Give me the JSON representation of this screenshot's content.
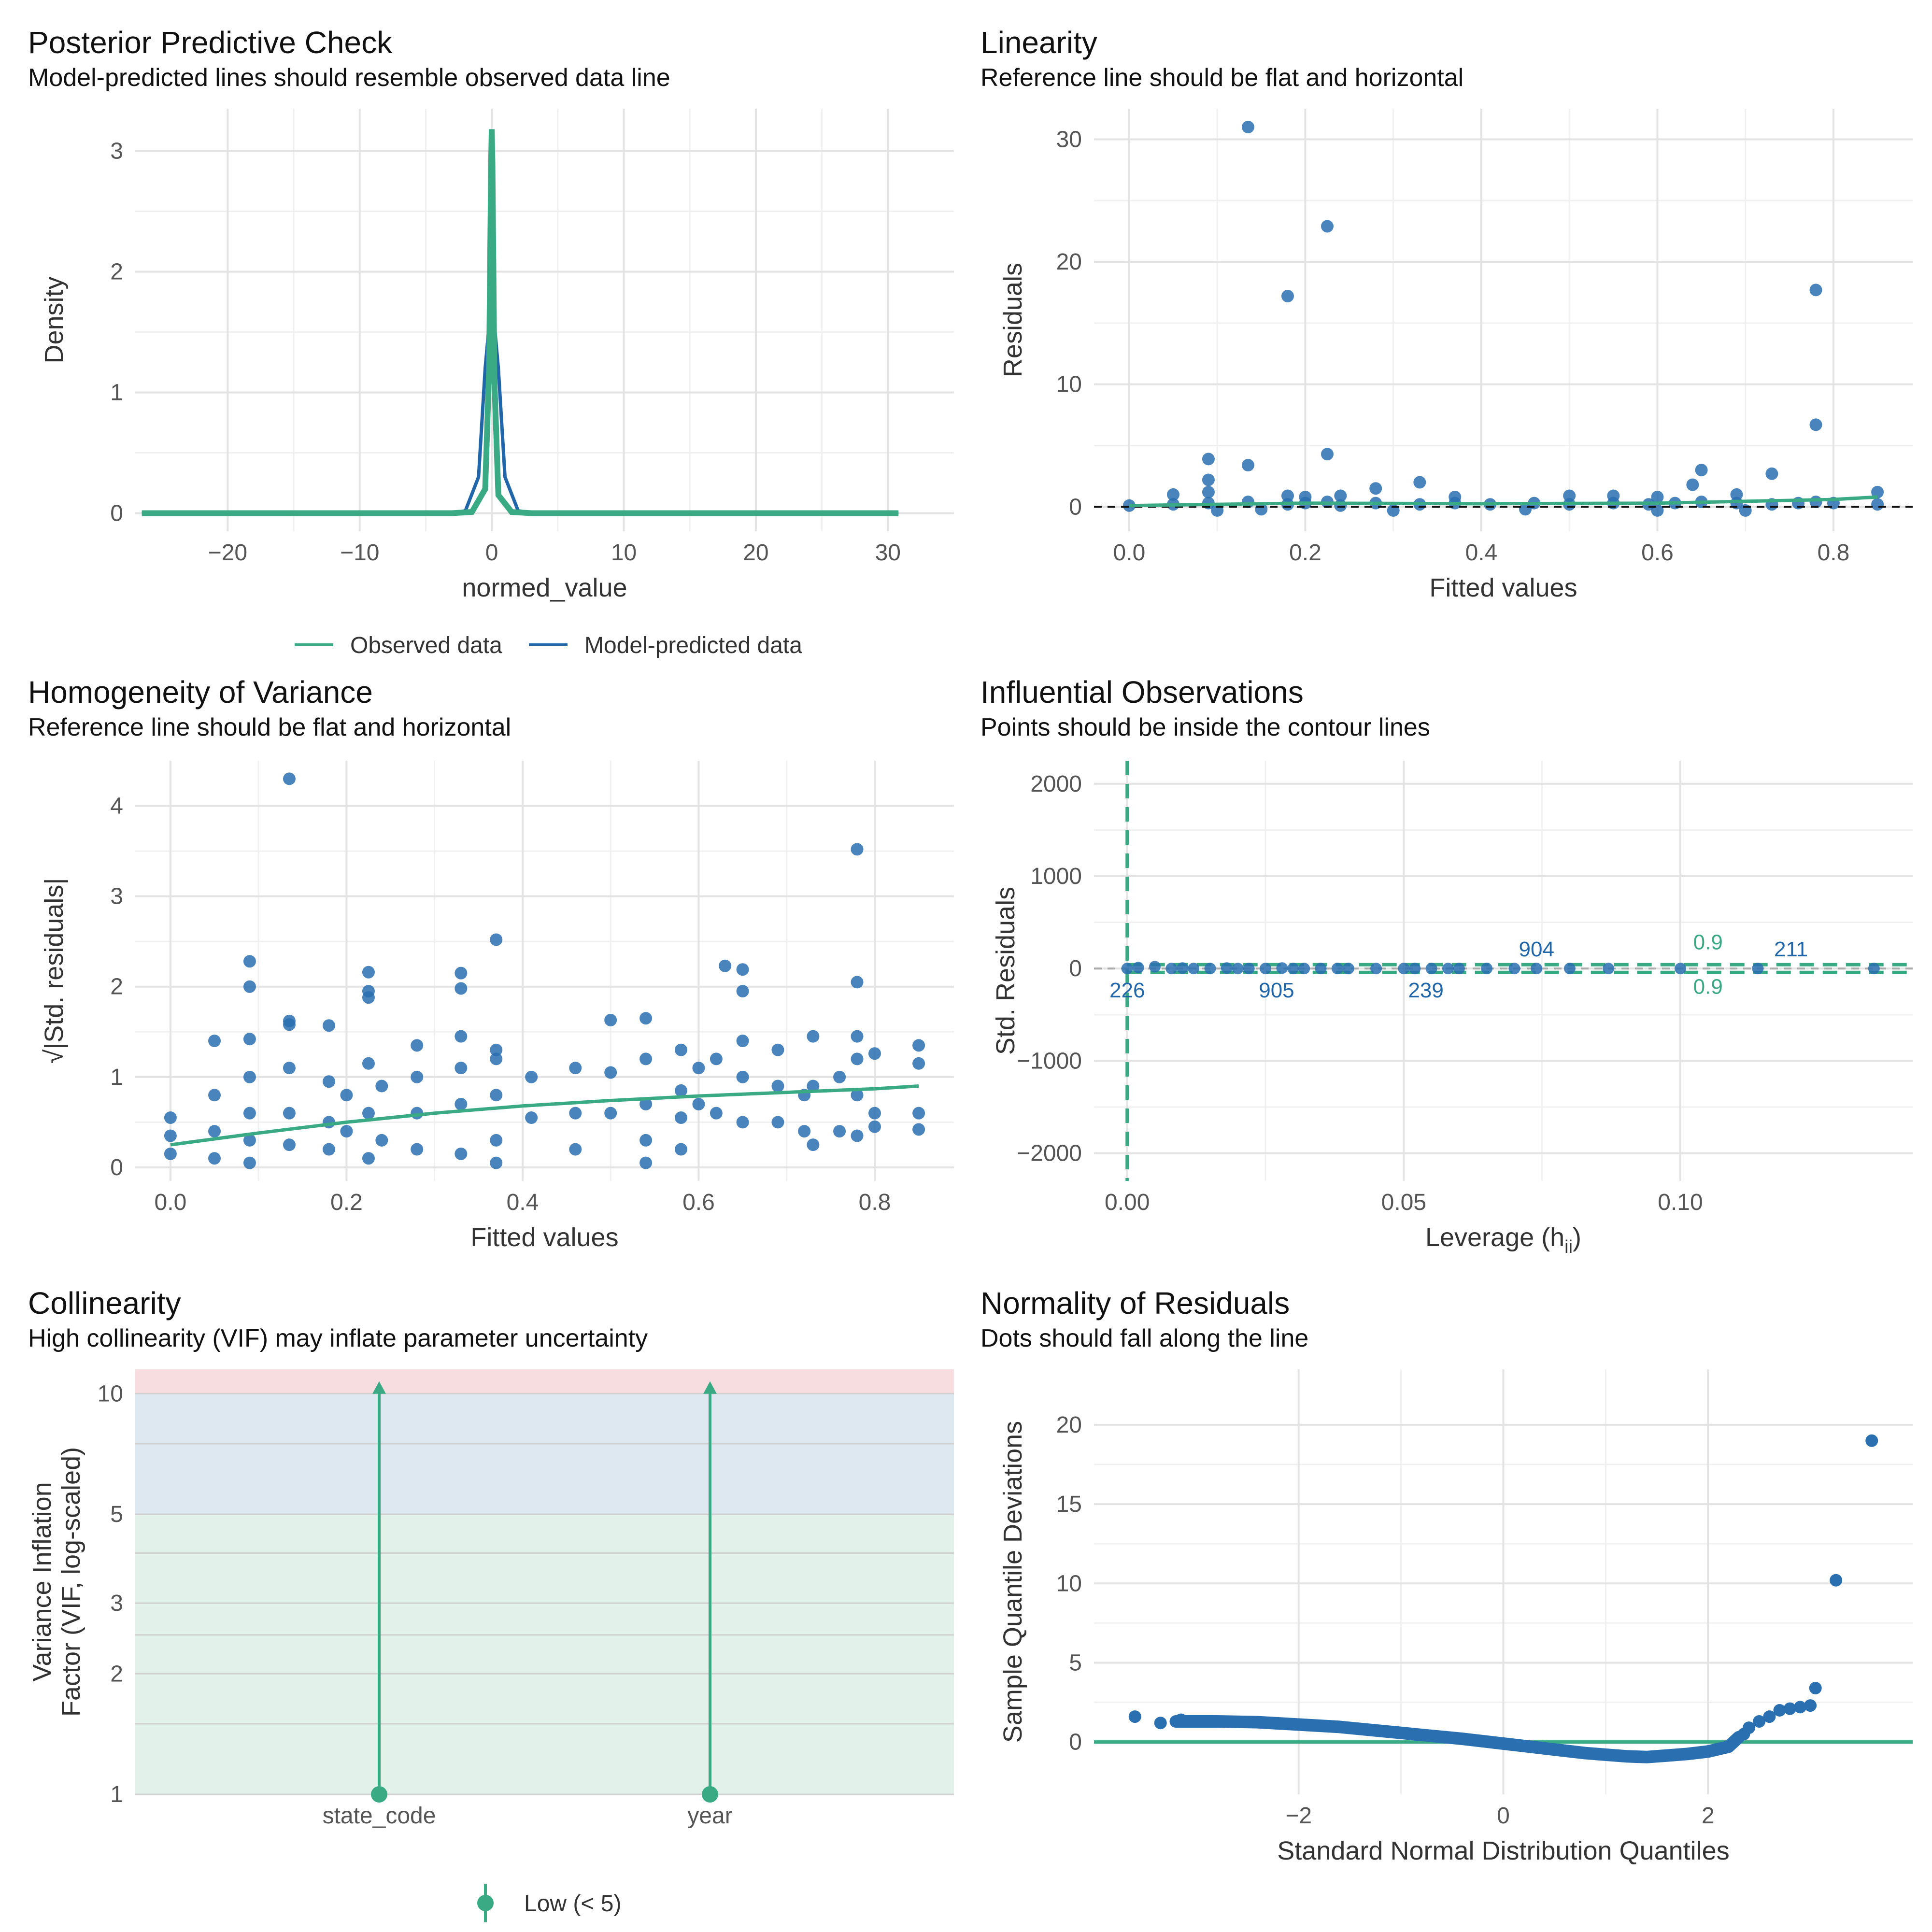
{
  "colors": {
    "observed": "#3aaa84",
    "predicted": "#2166a8",
    "points": "#2a6fb0",
    "smooth": "#3aaa84",
    "grid": "#e3e3e3",
    "axis_text": "#555555",
    "title": "#111111",
    "zone_low": "#e2f2ea",
    "zone_moderate": "#dde8f0",
    "zone_high": "#f8dde0"
  },
  "chart_data": [
    {
      "id": "ppc",
      "type": "line",
      "title": "Posterior Predictive Check",
      "subtitle": "Model-predicted lines should resemble observed data line",
      "xlabel": "normed_value",
      "ylabel": "Density",
      "xlim": [
        -27,
        35
      ],
      "ylim": [
        -0.15,
        3.35
      ],
      "xticks": [
        -20,
        -10,
        0,
        10,
        20,
        30
      ],
      "yticks": [
        0,
        1,
        2,
        3
      ],
      "series": [
        {
          "name": "Observed data",
          "x": [
            -26.5,
            -3,
            -1.5,
            -0.5,
            -0.2,
            -0.05,
            0,
            0.05,
            0.2,
            0.5,
            1.5,
            3,
            30.8
          ],
          "y": [
            0,
            0,
            0.01,
            0.2,
            1.2,
            2.9,
            3.18,
            2.9,
            1.1,
            0.15,
            0.01,
            0,
            0
          ]
        },
        {
          "name": "Model-predicted data",
          "x": [
            -26.5,
            -3,
            -2,
            -1,
            -0.5,
            0,
            0.5,
            1,
            2,
            3,
            30.8
          ],
          "y": [
            0,
            0,
            0.02,
            0.3,
            1.2,
            1.8,
            1.2,
            0.3,
            0.02,
            0,
            0
          ]
        }
      ],
      "legend": [
        "Observed data",
        "Model-predicted data"
      ]
    },
    {
      "id": "linearity",
      "type": "scatter",
      "title": "Linearity",
      "subtitle": "Reference line should be flat and horizontal",
      "xlabel": "Fitted values",
      "ylabel": "Residuals",
      "xlim": [
        -0.04,
        0.89
      ],
      "ylim": [
        -2,
        32.5
      ],
      "xticks": [
        0.0,
        0.2,
        0.4,
        0.6,
        0.8
      ],
      "xtick_labels": [
        "0.0",
        "0.2",
        "0.4",
        "0.6",
        "0.8"
      ],
      "yticks": [
        0,
        10,
        20,
        30
      ],
      "points": [
        [
          0.135,
          31.0
        ],
        [
          0.225,
          22.9
        ],
        [
          0.18,
          17.2
        ],
        [
          0.78,
          17.7
        ],
        [
          0.78,
          6.7
        ],
        [
          0.225,
          4.3
        ],
        [
          0.09,
          3.9
        ],
        [
          0.135,
          3.4
        ],
        [
          0.09,
          2.2
        ],
        [
          0.65,
          3.0
        ],
        [
          0.73,
          2.7
        ],
        [
          0.33,
          2.0
        ],
        [
          0.64,
          1.8
        ],
        [
          0.28,
          1.5
        ],
        [
          0.09,
          1.2
        ],
        [
          0.85,
          1.2
        ],
        [
          0.05,
          1.0
        ],
        [
          0.18,
          0.9
        ],
        [
          0.2,
          0.8
        ],
        [
          0.24,
          0.9
        ],
        [
          0.5,
          0.9
        ],
        [
          0.55,
          0.9
        ],
        [
          0.6,
          0.8
        ],
        [
          0.69,
          1.0
        ],
        [
          0.37,
          0.8
        ],
        [
          0.0,
          0.1
        ],
        [
          0.05,
          0.2
        ],
        [
          0.09,
          0.3
        ],
        [
          0.135,
          0.4
        ],
        [
          0.18,
          0.2
        ],
        [
          0.2,
          0.3
        ],
        [
          0.225,
          0.4
        ],
        [
          0.24,
          0.1
        ],
        [
          0.28,
          0.3
        ],
        [
          0.33,
          0.2
        ],
        [
          0.37,
          0.3
        ],
        [
          0.41,
          0.2
        ],
        [
          0.46,
          0.3
        ],
        [
          0.5,
          0.2
        ],
        [
          0.55,
          0.3
        ],
        [
          0.59,
          0.2
        ],
        [
          0.62,
          0.3
        ],
        [
          0.65,
          0.4
        ],
        [
          0.69,
          0.3
        ],
        [
          0.73,
          0.2
        ],
        [
          0.76,
          0.3
        ],
        [
          0.78,
          0.4
        ],
        [
          0.8,
          0.3
        ],
        [
          0.85,
          0.2
        ],
        [
          0.1,
          -0.3
        ],
        [
          0.15,
          -0.2
        ],
        [
          0.3,
          -0.3
        ],
        [
          0.45,
          -0.2
        ],
        [
          0.6,
          -0.3
        ],
        [
          0.7,
          -0.3
        ]
      ],
      "smooth": {
        "x": [
          0.0,
          0.2,
          0.4,
          0.6,
          0.8,
          0.85
        ],
        "y": [
          0.1,
          0.3,
          0.25,
          0.3,
          0.6,
          0.8
        ]
      },
      "reference_y": 0
    },
    {
      "id": "homogeneity",
      "type": "scatter",
      "title": "Homogeneity of Variance",
      "subtitle": "Reference line should be flat and horizontal",
      "xlabel": "Fitted values",
      "ylabel": "√|Std. residuals|",
      "xlim": [
        -0.04,
        0.89
      ],
      "ylim": [
        -0.15,
        4.5
      ],
      "xticks": [
        0.0,
        0.2,
        0.4,
        0.6,
        0.8
      ],
      "xtick_labels": [
        "0.0",
        "0.2",
        "0.4",
        "0.6",
        "0.8"
      ],
      "yticks": [
        0,
        1,
        2,
        3,
        4
      ],
      "points": [
        [
          0.135,
          4.3
        ],
        [
          0.78,
          3.52
        ],
        [
          0.37,
          2.52
        ],
        [
          0.09,
          2.28
        ],
        [
          0.225,
          2.16
        ],
        [
          0.33,
          2.15
        ],
        [
          0.63,
          2.23
        ],
        [
          0.65,
          2.19
        ],
        [
          0.09,
          2.0
        ],
        [
          0.225,
          1.95
        ],
        [
          0.33,
          1.98
        ],
        [
          0.65,
          1.95
        ],
        [
          0.78,
          2.05
        ],
        [
          0.225,
          1.88
        ],
        [
          0.5,
          1.63
        ],
        [
          0.54,
          1.65
        ],
        [
          0.135,
          1.62
        ],
        [
          0.135,
          1.58
        ],
        [
          0.18,
          1.57
        ],
        [
          0.09,
          1.42
        ],
        [
          0.05,
          1.4
        ],
        [
          0.33,
          1.45
        ],
        [
          0.65,
          1.4
        ],
        [
          0.73,
          1.45
        ],
        [
          0.78,
          1.45
        ],
        [
          0.85,
          1.35
        ],
        [
          0.28,
          1.35
        ],
        [
          0.37,
          1.3
        ],
        [
          0.69,
          1.3
        ],
        [
          0.8,
          1.26
        ],
        [
          0.0,
          0.55
        ],
        [
          0.0,
          0.35
        ],
        [
          0.0,
          0.15
        ],
        [
          0.05,
          0.8
        ],
        [
          0.05,
          0.4
        ],
        [
          0.05,
          0.1
        ],
        [
          0.09,
          1.0
        ],
        [
          0.09,
          0.6
        ],
        [
          0.09,
          0.3
        ],
        [
          0.09,
          0.05
        ],
        [
          0.135,
          1.1
        ],
        [
          0.135,
          0.6
        ],
        [
          0.135,
          0.25
        ],
        [
          0.18,
          0.95
        ],
        [
          0.18,
          0.5
        ],
        [
          0.18,
          0.2
        ],
        [
          0.2,
          0.8
        ],
        [
          0.2,
          0.4
        ],
        [
          0.225,
          1.15
        ],
        [
          0.225,
          0.6
        ],
        [
          0.225,
          0.1
        ],
        [
          0.24,
          0.9
        ],
        [
          0.24,
          0.3
        ],
        [
          0.28,
          1.0
        ],
        [
          0.28,
          0.6
        ],
        [
          0.28,
          0.2
        ],
        [
          0.33,
          1.1
        ],
        [
          0.33,
          0.7
        ],
        [
          0.33,
          0.15
        ],
        [
          0.37,
          1.2
        ],
        [
          0.37,
          0.8
        ],
        [
          0.37,
          0.3
        ],
        [
          0.37,
          0.05
        ],
        [
          0.41,
          1.0
        ],
        [
          0.41,
          0.55
        ],
        [
          0.46,
          1.1
        ],
        [
          0.46,
          0.6
        ],
        [
          0.46,
          0.2
        ],
        [
          0.5,
          1.05
        ],
        [
          0.5,
          0.6
        ],
        [
          0.54,
          1.2
        ],
        [
          0.54,
          0.7
        ],
        [
          0.54,
          0.3
        ],
        [
          0.54,
          0.05
        ],
        [
          0.58,
          1.3
        ],
        [
          0.58,
          0.85
        ],
        [
          0.58,
          0.55
        ],
        [
          0.58,
          0.2
        ],
        [
          0.6,
          1.1
        ],
        [
          0.6,
          0.7
        ],
        [
          0.62,
          1.2
        ],
        [
          0.62,
          0.6
        ],
        [
          0.65,
          1.0
        ],
        [
          0.65,
          0.5
        ],
        [
          0.69,
          0.9
        ],
        [
          0.69,
          0.5
        ],
        [
          0.72,
          0.8
        ],
        [
          0.72,
          0.4
        ],
        [
          0.73,
          0.9
        ],
        [
          0.73,
          0.25
        ],
        [
          0.76,
          1.0
        ],
        [
          0.76,
          0.4
        ],
        [
          0.78,
          1.2
        ],
        [
          0.78,
          0.8
        ],
        [
          0.78,
          0.35
        ],
        [
          0.8,
          0.6
        ],
        [
          0.8,
          0.45
        ],
        [
          0.85,
          0.6
        ],
        [
          0.85,
          0.42
        ],
        [
          0.85,
          1.15
        ]
      ],
      "smooth": {
        "x": [
          0.0,
          0.1,
          0.2,
          0.3,
          0.4,
          0.5,
          0.6,
          0.7,
          0.8,
          0.85
        ],
        "y": [
          0.25,
          0.38,
          0.5,
          0.6,
          0.68,
          0.74,
          0.79,
          0.83,
          0.87,
          0.9
        ]
      }
    },
    {
      "id": "influence",
      "type": "scatter",
      "title": "Influential Observations",
      "subtitle": "Points should be inside the contour lines",
      "xlabel": "Leverage (h",
      "xlabel_sub": "ii",
      "xlabel_close": ")",
      "ylabel": "Std. Residuals",
      "xlim": [
        -0.006,
        0.142
      ],
      "ylim": [
        -2300,
        2250
      ],
      "xticks": [
        0.0,
        0.05,
        0.1
      ],
      "xtick_labels": [
        "0.00",
        "0.05",
        "0.10"
      ],
      "yticks": [
        -2000,
        -1000,
        0,
        1000,
        2000
      ],
      "points": [
        [
          0.0,
          0
        ],
        [
          0.002,
          10
        ],
        [
          0.005,
          20
        ],
        [
          0.008,
          0
        ],
        [
          0.01,
          5
        ],
        [
          0.012,
          0
        ],
        [
          0.015,
          0
        ],
        [
          0.018,
          5
        ],
        [
          0.02,
          0
        ],
        [
          0.022,
          0
        ],
        [
          0.025,
          0
        ],
        [
          0.028,
          5
        ],
        [
          0.03,
          0
        ],
        [
          0.032,
          0
        ],
        [
          0.035,
          0
        ],
        [
          0.038,
          0
        ],
        [
          0.04,
          0
        ],
        [
          0.045,
          0
        ],
        [
          0.05,
          0
        ],
        [
          0.052,
          0
        ],
        [
          0.055,
          0
        ],
        [
          0.058,
          0
        ],
        [
          0.06,
          0
        ],
        [
          0.065,
          0
        ],
        [
          0.07,
          0
        ],
        [
          0.074,
          0
        ],
        [
          0.08,
          0
        ],
        [
          0.087,
          0
        ],
        [
          0.1,
          0
        ],
        [
          0.114,
          0
        ],
        [
          0.135,
          0
        ]
      ],
      "labels": [
        {
          "x": 0.0,
          "y": 0,
          "text": "226",
          "pos": "below"
        },
        {
          "x": 0.027,
          "y": 0,
          "text": "905",
          "pos": "below"
        },
        {
          "x": 0.054,
          "y": 0,
          "text": "239",
          "pos": "below"
        },
        {
          "x": 0.074,
          "y": 0,
          "text": "904",
          "pos": "above"
        },
        {
          "x": 0.12,
          "y": 0,
          "text": "211",
          "pos": "above"
        }
      ],
      "contour_labels": [
        {
          "x": 0.105,
          "y": 280,
          "text": "0.9"
        },
        {
          "x": 0.105,
          "y": -200,
          "text": "0.9"
        }
      ]
    },
    {
      "id": "collinearity",
      "type": "bar",
      "title": "Collinearity",
      "subtitle": "High collinearity (VIF) may inflate parameter uncertainty",
      "ylabel_line1": "Variance Inflation",
      "ylabel_line2": "Factor (VIF, log-scaled)",
      "categories": [
        "state_code",
        "year"
      ],
      "values": [
        1,
        1
      ],
      "ci_upper": [
        10.5,
        10.5
      ],
      "ylim": [
        1,
        11.5
      ],
      "yticks": [
        1,
        2,
        3,
        5,
        10
      ],
      "scale": "log",
      "zones": [
        {
          "from": 1,
          "to": 5,
          "level": "low"
        },
        {
          "from": 5,
          "to": 10,
          "level": "moderate"
        },
        {
          "from": 10,
          "to": 11.5,
          "level": "high"
        }
      ],
      "legend": [
        "Low (< 5)"
      ]
    },
    {
      "id": "qq",
      "type": "scatter",
      "title": "Normality of Residuals",
      "subtitle": "Dots should fall along the line",
      "xlabel": "Standard Normal Distribution Quantiles",
      "ylabel": "Sample Quantile Deviations",
      "xlim": [
        -4.0,
        4.0
      ],
      "ylim": [
        -3.3,
        23.5
      ],
      "xticks": [
        -2,
        0,
        2
      ],
      "yticks": [
        0,
        5,
        10,
        15,
        20
      ],
      "reference_y": 0,
      "curve": {
        "x": [
          -3.2,
          -2.8,
          -2.4,
          -2.0,
          -1.6,
          -1.2,
          -0.8,
          -0.4,
          0.0,
          0.4,
          0.8,
          1.2,
          1.4,
          1.6,
          1.8,
          2.0,
          2.2,
          2.3
        ],
        "y": [
          1.3,
          1.3,
          1.25,
          1.1,
          0.95,
          0.7,
          0.45,
          0.2,
          -0.1,
          -0.4,
          -0.7,
          -0.9,
          -0.95,
          -0.85,
          -0.75,
          -0.6,
          -0.3,
          0.3
        ]
      },
      "points": [
        [
          -3.6,
          1.6
        ],
        [
          -3.35,
          1.2
        ],
        [
          -3.15,
          1.4
        ],
        [
          -3.0,
          1.3
        ],
        [
          2.35,
          0.5
        ],
        [
          2.4,
          0.9
        ],
        [
          2.5,
          1.3
        ],
        [
          2.6,
          1.6
        ],
        [
          2.7,
          2.0
        ],
        [
          2.8,
          2.1
        ],
        [
          2.9,
          2.2
        ],
        [
          3.0,
          2.3
        ],
        [
          3.05,
          3.4
        ],
        [
          3.25,
          10.2
        ],
        [
          3.6,
          19.0
        ]
      ]
    }
  ]
}
